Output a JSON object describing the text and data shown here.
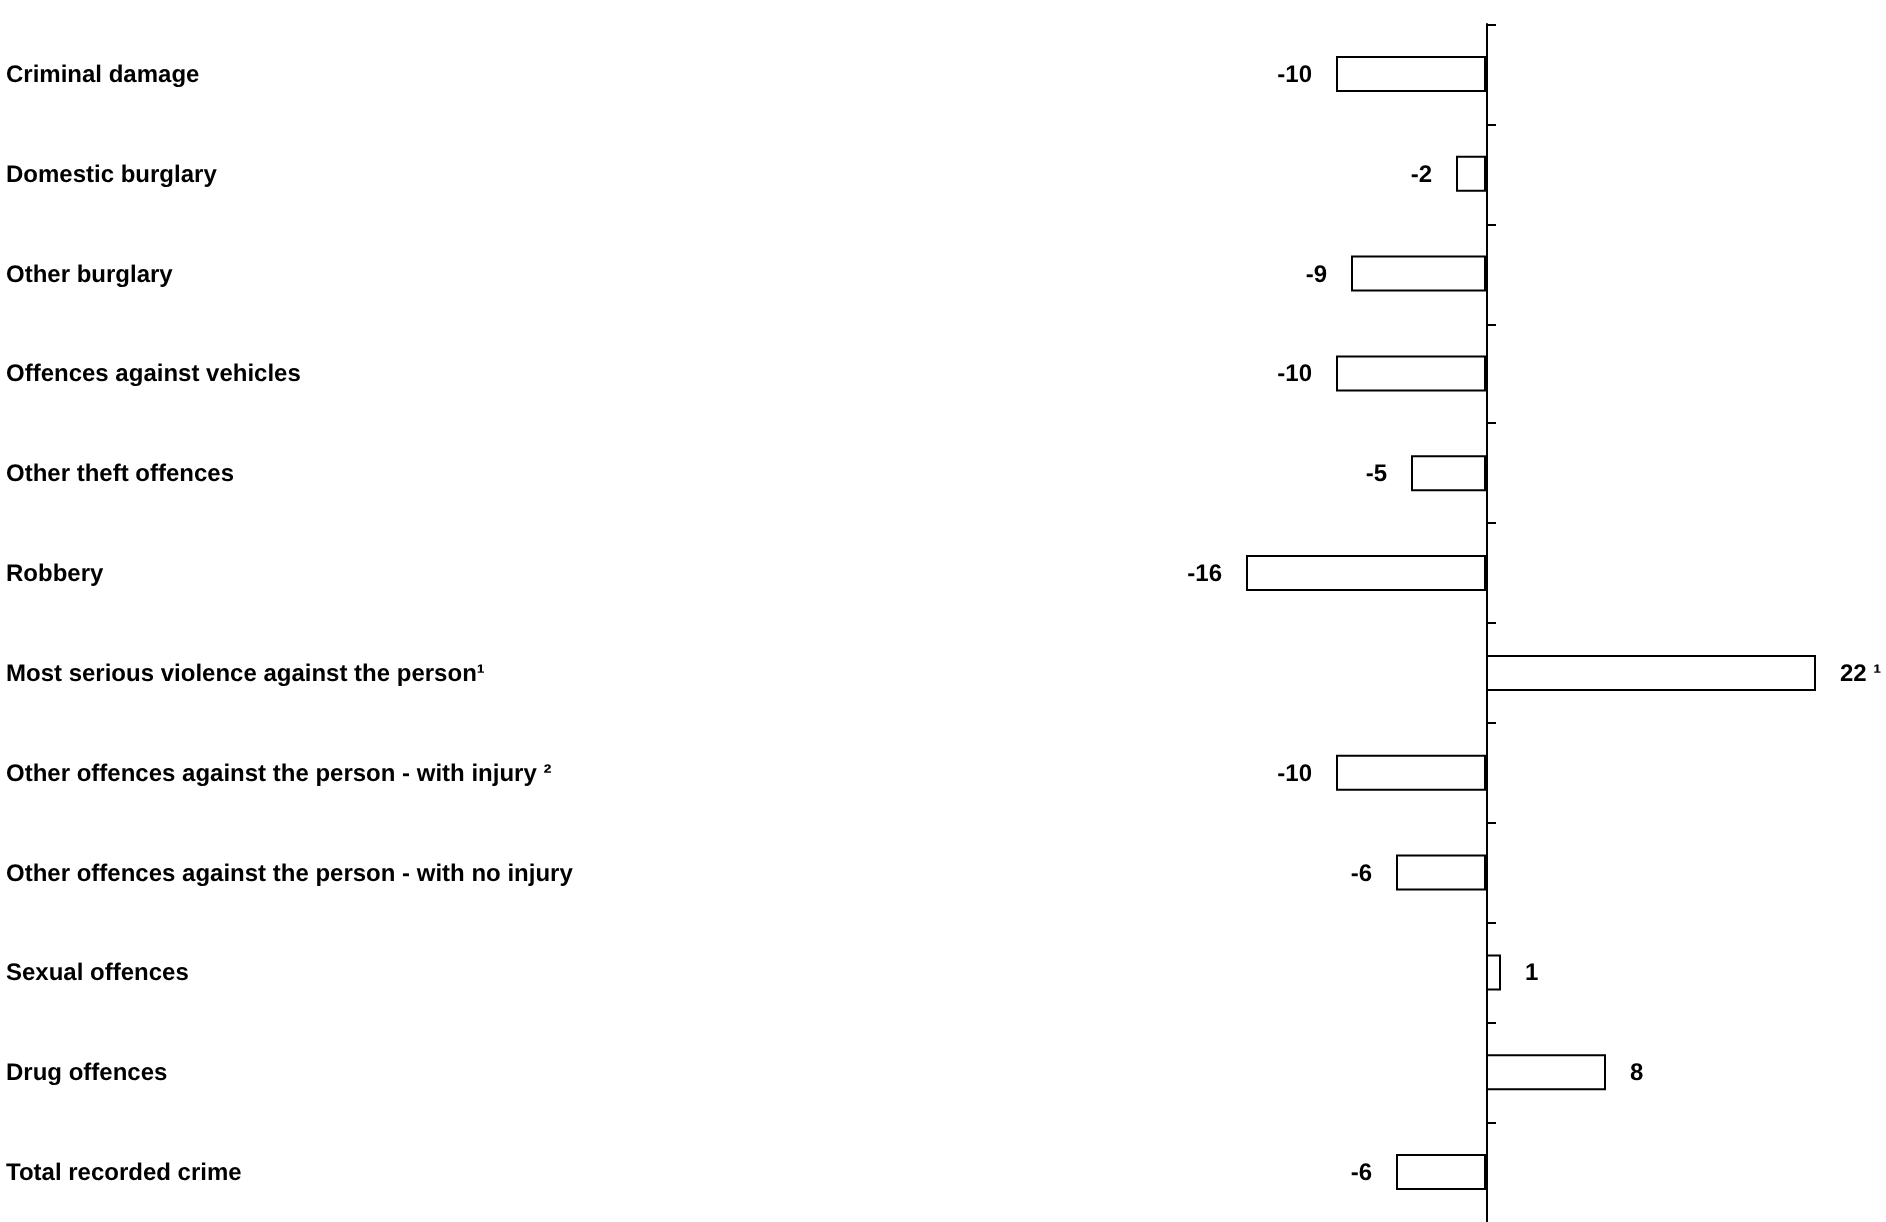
{
  "chart_data": {
    "type": "bar",
    "orientation": "horizontal",
    "categories": [
      "Criminal damage",
      "Domestic burglary",
      "Other burglary",
      "Offences against vehicles",
      "Other theft offences",
      "Robbery",
      "Most serious violence against the person¹",
      "Other offences against the person - with injury ²",
      "Other offences against the person - with no injury",
      "Sexual offences",
      "Drug offences",
      "Total recorded crime"
    ],
    "values": [
      -10,
      -2,
      -9,
      -10,
      -5,
      -16,
      22,
      -10,
      -6,
      1,
      8,
      -6
    ],
    "value_labels": [
      "-10",
      "-2",
      "-9",
      "-10",
      "-5",
      "-16",
      "22 ¹",
      "-10",
      "-6",
      "1",
      "8",
      "-6"
    ],
    "color": "#ffffff"
  }
}
